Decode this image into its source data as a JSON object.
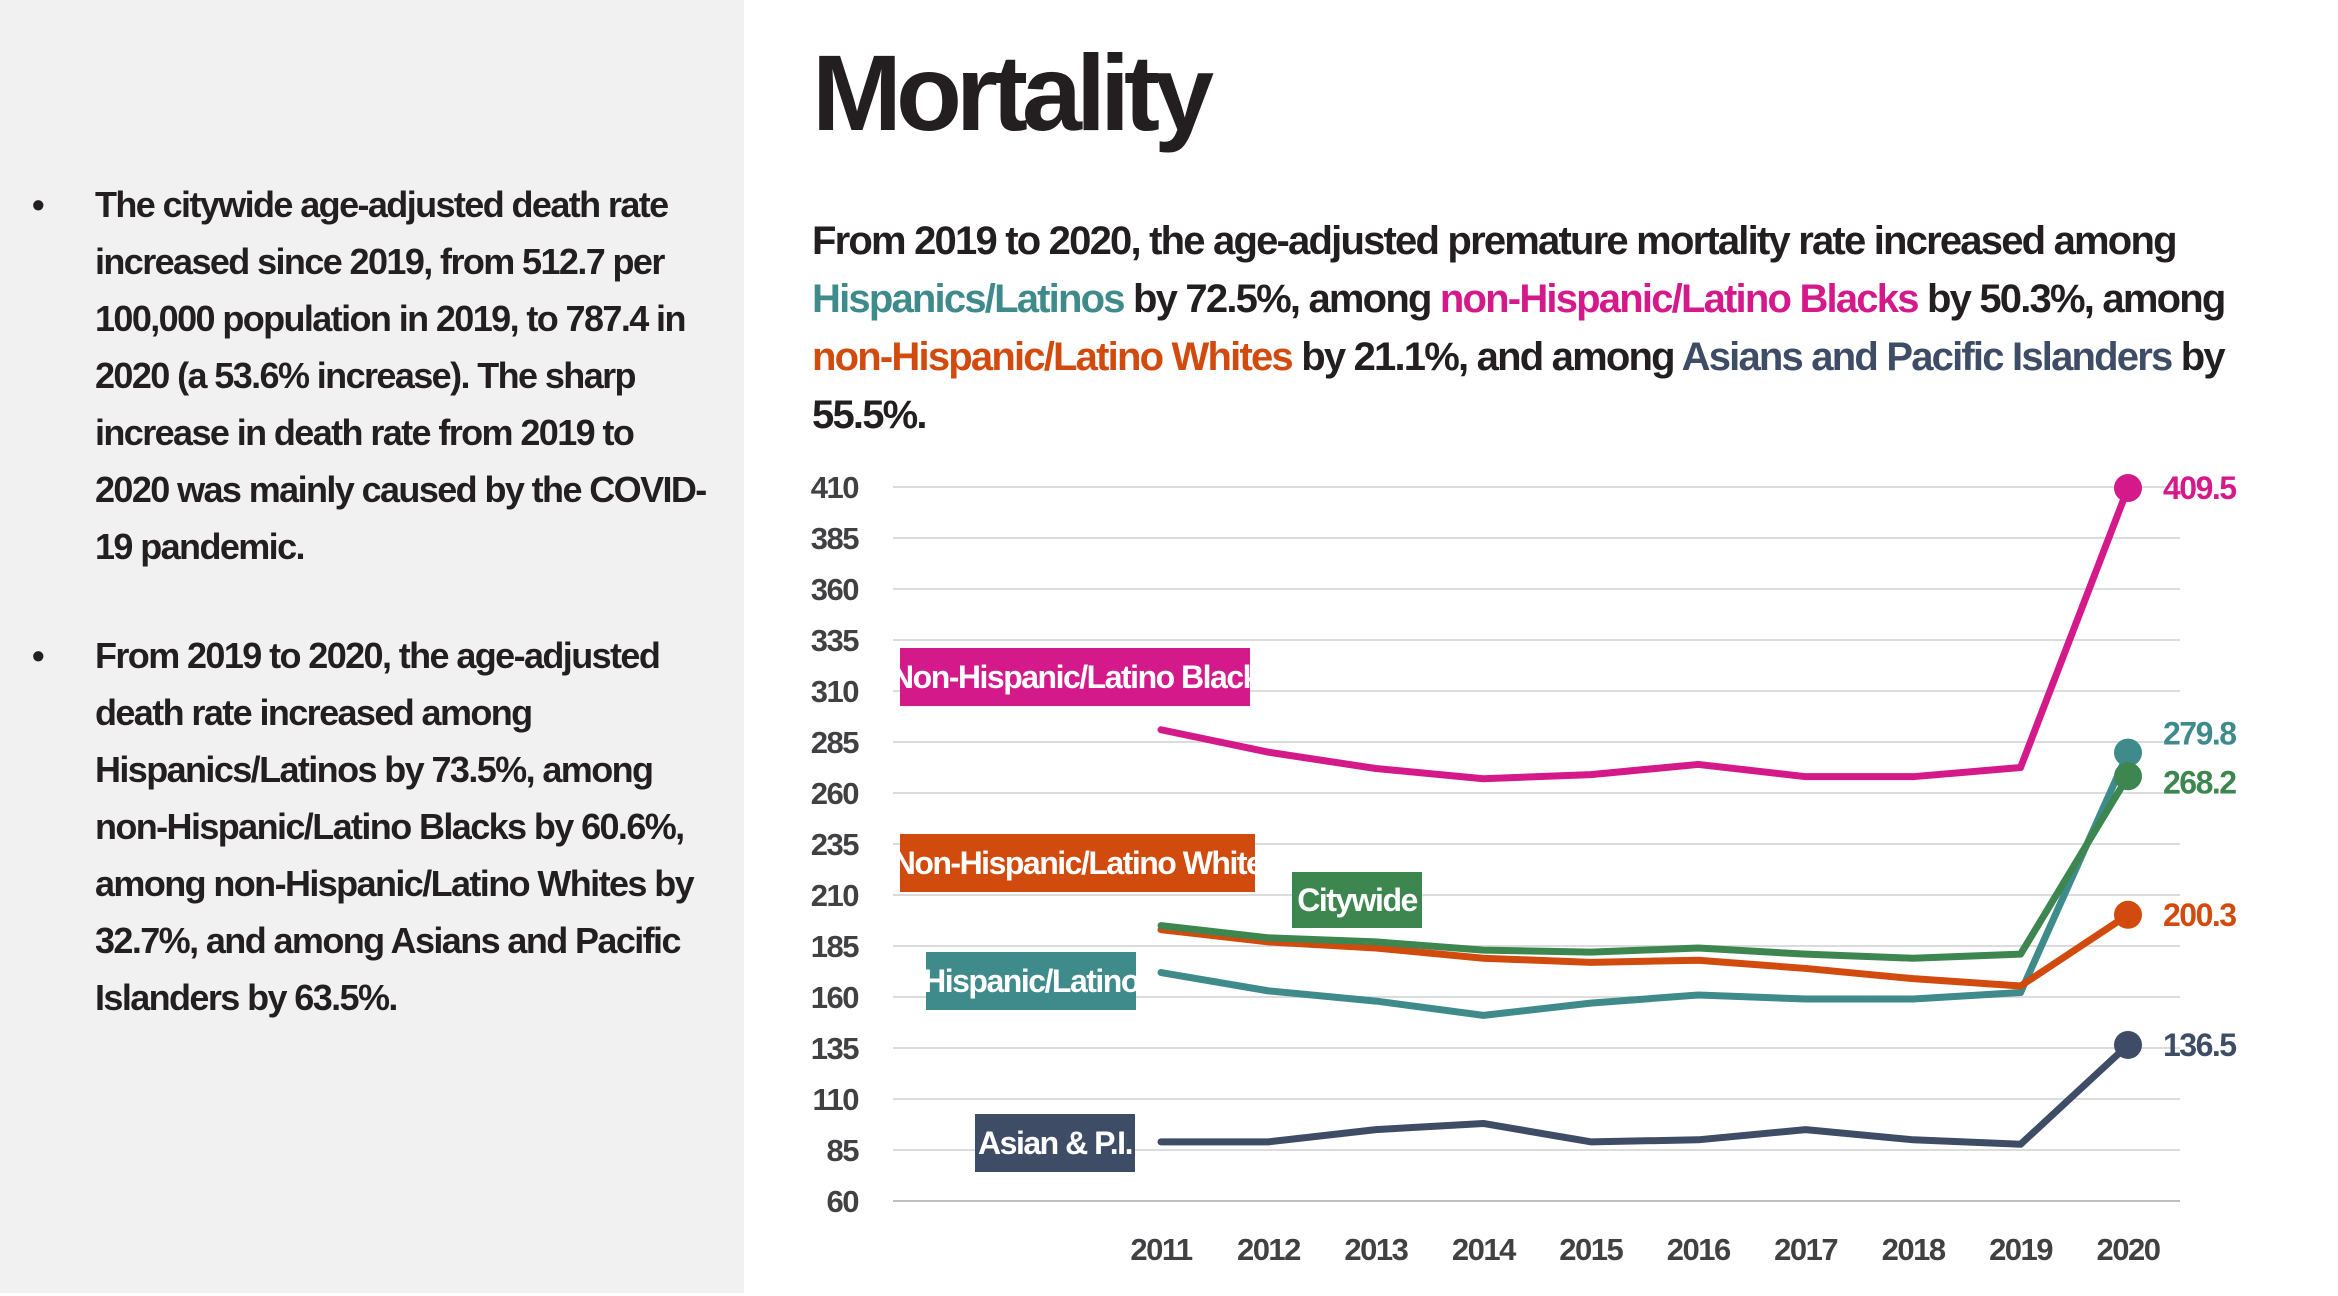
{
  "title": "Mortality",
  "sidebar": {
    "bullets": [
      "The citywide age-adjusted death rate increased since 2019, from 512.7 per 100,000 population in 2019, to 787.4 in 2020 (a 53.6% increase). The sharp increase in death rate from 2019 to 2020 was mainly caused by the COVID-19 pandemic.",
      "From 2019 to 2020, the age-adjusted death rate increased among Hispanics/Latinos by 73.5%, among non-Hispanic/Latino Blacks by 60.6%, among non-Hispanic/Latino Whites by 32.7%, and among Asians and Pacific Islanders by 63.5%."
    ]
  },
  "subtitle": {
    "p1": "From 2019 to 2020, the age-adjusted premature mortality rate increased among ",
    "hisp": "Hispanics/Latinos",
    "p2": " by 72.5%, among ",
    "black": "non-Hispanic/Latino Blacks",
    "p3": " by 50.3%, among ",
    "white": "non-Hispanic/Latino Whites",
    "p4": " by 21.1%, and among ",
    "asian": "Asians and Pacific Islanders",
    "p5": " by 55.5%."
  },
  "colors": {
    "black": "#d4198a",
    "hispanic": "#3f8a8a",
    "white": "#d14a0e",
    "citywide": "#3e8650",
    "asian": "#3f4c66",
    "grid": "#dcdcdc",
    "text": "#231f20"
  },
  "chart_data": {
    "type": "line",
    "title": "",
    "xlabel": "",
    "ylabel": "",
    "x": [
      "2011",
      "2012",
      "2013",
      "2014",
      "2015",
      "2016",
      "2017",
      "2018",
      "2019",
      "2020"
    ],
    "ylim": [
      60,
      410
    ],
    "yticks": [
      410,
      385,
      360,
      335,
      310,
      285,
      260,
      235,
      210,
      185,
      160,
      135,
      110,
      85,
      60
    ],
    "grid": true,
    "series": [
      {
        "key": "black",
        "name": "Non-Hispanic/Latino Black",
        "values": [
          291,
          280,
          272,
          267,
          269,
          274,
          268,
          268,
          272.5,
          409.5
        ],
        "end_label": "409.5"
      },
      {
        "key": "hispanic",
        "name": "Hispanic/Latino",
        "values": [
          172,
          163,
          158,
          151,
          157,
          161,
          159,
          159,
          162.2,
          279.8
        ],
        "end_label": "279.8"
      },
      {
        "key": "citywide",
        "name": "Citywide",
        "values": [
          195,
          189,
          187,
          183,
          182,
          184,
          181,
          179,
          181,
          268.2
        ],
        "end_label": "268.2"
      },
      {
        "key": "white",
        "name": "Non-Hispanic/Latino White",
        "values": [
          193,
          187,
          184,
          179,
          177,
          178,
          174,
          169,
          165.4,
          200.3
        ],
        "end_label": "200.3"
      },
      {
        "key": "asian",
        "name": "Asian & P.I.",
        "values": [
          89,
          89,
          95,
          98,
          89,
          90,
          95,
          90,
          87.8,
          136.5
        ],
        "end_label": "136.5"
      }
    ]
  }
}
